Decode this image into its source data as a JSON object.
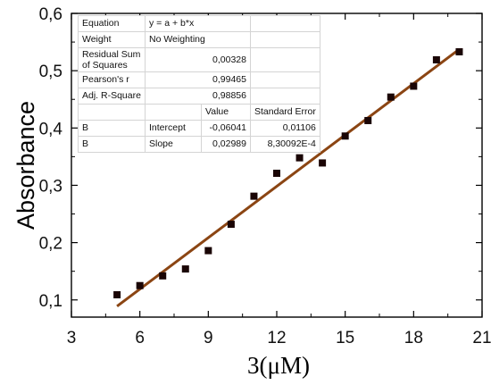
{
  "chart_data": {
    "type": "scatter",
    "title": "",
    "xlabel": "3(μM)",
    "ylabel": "Absorbance",
    "xlim": [
      3,
      21
    ],
    "ylim": [
      0.07,
      0.6
    ],
    "xticks": [
      "3",
      "6",
      "9",
      "12",
      "15",
      "18",
      "21"
    ],
    "yticks": [
      "0,1",
      "0,2",
      "0,3",
      "0,4",
      "0,5",
      "0,6"
    ],
    "marker_color": "#1a0505",
    "line_color": "#8b4513",
    "x": [
      5,
      6,
      7,
      8,
      9,
      10,
      11,
      12,
      13,
      14,
      15,
      16,
      17,
      18,
      19,
      20
    ],
    "y": [
      0.109,
      0.125,
      0.142,
      0.154,
      0.186,
      0.232,
      0.281,
      0.321,
      0.348,
      0.339,
      0.386,
      0.413,
      0.454,
      0.473,
      0.519,
      0.533
    ],
    "fit": {
      "intercept": -0.06041,
      "slope": 0.02989,
      "x_range": [
        5,
        20
      ]
    },
    "stats_table": [
      [
        "Equation",
        "y = a + b*x",
        "",
        ""
      ],
      [
        "Weight",
        "No Weighting",
        "",
        ""
      ],
      [
        "Residual Sum of Squares",
        "",
        "0,00328",
        ""
      ],
      [
        "Pearson's r",
        "",
        "0,99465",
        ""
      ],
      [
        "Adj. R-Square",
        "",
        "0,98856",
        ""
      ],
      [
        "",
        "",
        "Value",
        "Standard Error"
      ],
      [
        "B",
        "Intercept",
        "-0,06041",
        "0,01106"
      ],
      [
        "B",
        "Slope",
        "0,02989",
        "8,30092E-4"
      ]
    ]
  }
}
